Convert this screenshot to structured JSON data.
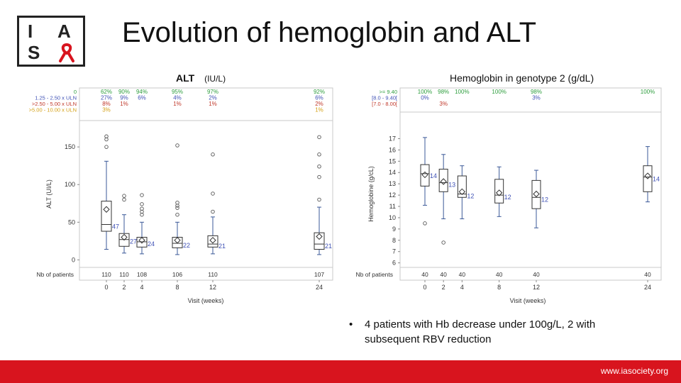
{
  "header": {
    "title": "Evolution of hemoglobin and ALT",
    "logo_letters": [
      "I",
      "A",
      "S"
    ]
  },
  "footer": {
    "url": "www.iasociety.org",
    "color": "#d8141e"
  },
  "bullet": {
    "text": "4 patients with Hb decrease under 100g/L, 2 with subsequent RBV reduction"
  },
  "colors": {
    "box": "#3b5998",
    "green": "#2e9e3e",
    "blue": "#3f51b5",
    "red": "#c0392b",
    "orange": "#d4a017"
  },
  "chart_data": [
    {
      "type": "boxplot",
      "title": "ALT",
      "title_unit": "(IU/L)",
      "xlabel": "Visit (weeks)",
      "ylabel": "ALT (UI/L)",
      "x": [
        0,
        2,
        4,
        8,
        12,
        24
      ],
      "x_ticks": [
        "0",
        "2",
        "4",
        "8",
        "12",
        "24"
      ],
      "ylim": [
        -10,
        185
      ],
      "y_ticks": [
        0,
        50,
        100,
        150
      ],
      "grades": {
        "labels": [
          "0",
          "1.25 - 2.50 x ULN",
          ">2.50 - 5.00 x ULN",
          ">5.00 - 10.00 x ULN"
        ],
        "colors": [
          "#2e9e3e",
          "#3f51b5",
          "#c0392b",
          "#d4a017"
        ],
        "rows": [
          [
            "62%",
            "90%",
            "94%",
            "95%",
            "97%",
            "92%"
          ],
          [
            "27%",
            "9%",
            "6%",
            "4%",
            "2%",
            "6%"
          ],
          [
            "8%",
            "1%",
            "",
            "1%",
            "1%",
            "2%"
          ],
          [
            "3%",
            "",
            "",
            "",
            "",
            "1%"
          ]
        ]
      },
      "boxes": [
        {
          "q1": 38,
          "median": 47,
          "q3": 78,
          "lo": 14,
          "hi": 131,
          "mean": 67,
          "outliers": [
            150,
            160,
            164
          ]
        },
        {
          "q1": 18,
          "median": 27,
          "q3": 35,
          "lo": 9,
          "hi": 60,
          "mean": 30,
          "outliers": [
            85,
            80
          ]
        },
        {
          "q1": 17,
          "median": 24,
          "q3": 30,
          "lo": 8,
          "hi": 50,
          "mean": 26,
          "outliers": [
            60,
            64,
            68,
            74,
            86
          ]
        },
        {
          "q1": 16,
          "median": 22,
          "q3": 30,
          "lo": 7,
          "hi": 50,
          "mean": 26,
          "outliers": [
            60,
            69,
            72,
            76,
            152
          ]
        },
        {
          "q1": 17,
          "median": 21,
          "q3": 32,
          "lo": 8,
          "hi": 57,
          "mean": 26,
          "outliers": [
            64,
            88,
            140
          ]
        },
        {
          "q1": 14,
          "median": 21,
          "q3": 36,
          "lo": 7,
          "hi": 70,
          "mean": 31,
          "outliers": [
            80,
            110,
            124,
            140,
            163
          ]
        }
      ],
      "median_labels": [
        "47",
        "27",
        "24",
        "22",
        "21",
        "21"
      ],
      "nb_label": "Nb of patients",
      "nb": [
        "110",
        "110",
        "108",
        "106",
        "110",
        "107"
      ]
    },
    {
      "type": "boxplot",
      "title": "Hemoglobin in genotype 2 (g/dL)",
      "xlabel": "Visit (weeks)",
      "ylabel": "Hemoglobine (g/cL)",
      "x": [
        0,
        2,
        4,
        8,
        12,
        24
      ],
      "x_ticks": [
        "0",
        "2",
        "4",
        "8",
        "12",
        "24"
      ],
      "ylim": [
        5.6,
        18.6
      ],
      "y_ticks": [
        6,
        7,
        8,
        9,
        10,
        11,
        12,
        13,
        14,
        15,
        16,
        17
      ],
      "grades": {
        "labels": [
          ">= 9.40",
          "[8.0 - 9.40[",
          "[7.0 - 8.00["
        ],
        "colors": [
          "#2e9e3e",
          "#3f51b5",
          "#c0392b"
        ],
        "rows": [
          [
            "100%",
            "98%",
            "100%",
            "100%",
            "98%",
            "100%"
          ],
          [
            "0%",
            "",
            "",
            "",
            "3%",
            ""
          ],
          [
            "",
            "3%",
            "",
            "",
            "",
            ""
          ]
        ]
      },
      "boxes": [
        {
          "q1": 12.8,
          "median": 13.9,
          "q3": 14.7,
          "lo": 11.1,
          "hi": 17.1,
          "mean": 13.8,
          "outliers": [
            9.5
          ]
        },
        {
          "q1": 12.3,
          "median": 13.1,
          "q3": 14.3,
          "lo": 9.9,
          "hi": 15.6,
          "mean": 13.2,
          "outliers": [
            7.8
          ]
        },
        {
          "q1": 11.8,
          "median": 12.1,
          "q3": 13.7,
          "lo": 9.9,
          "hi": 14.6,
          "mean": 12.3,
          "outliers": []
        },
        {
          "q1": 11.3,
          "median": 12.0,
          "q3": 13.4,
          "lo": 10.1,
          "hi": 14.5,
          "mean": 12.2,
          "outliers": []
        },
        {
          "q1": 10.8,
          "median": 11.8,
          "q3": 13.3,
          "lo": 9.1,
          "hi": 14.2,
          "mean": 12.1,
          "outliers": []
        },
        {
          "q1": 12.3,
          "median": 13.6,
          "q3": 14.6,
          "lo": 11.4,
          "hi": 16.3,
          "mean": 13.7,
          "outliers": []
        }
      ],
      "median_labels": [
        "14",
        "13",
        "12",
        "12",
        "12",
        "14"
      ],
      "nb_label": "Nb of patients",
      "nb": [
        "40",
        "40",
        "40",
        "40",
        "40",
        "40"
      ]
    }
  ]
}
